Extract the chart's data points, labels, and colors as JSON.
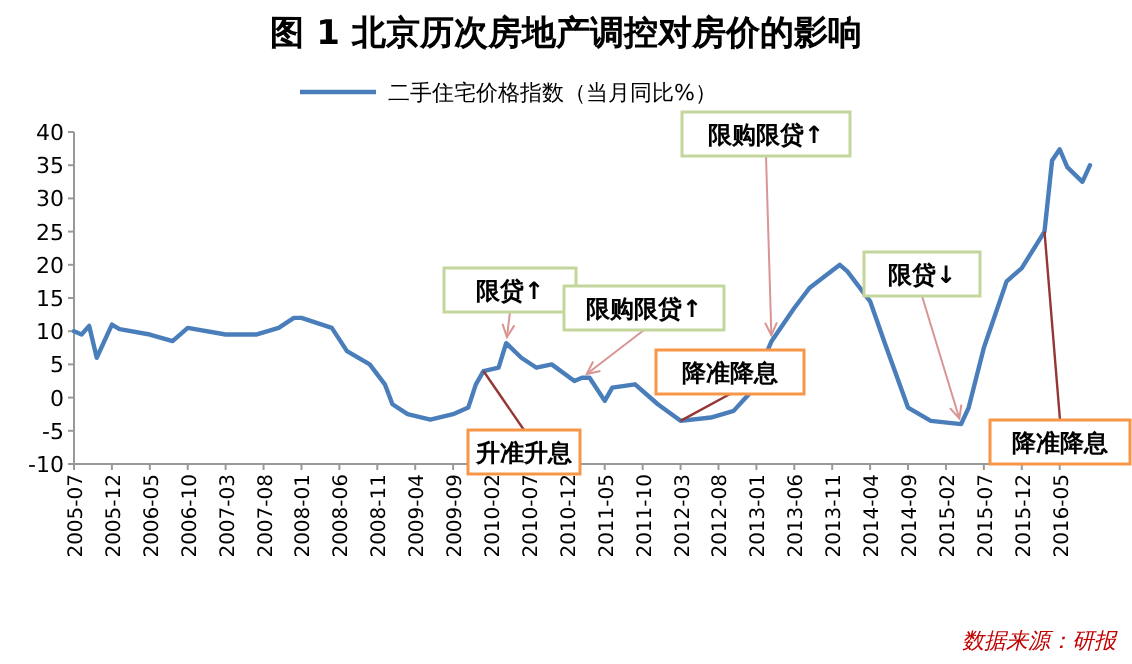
{
  "chart_data": {
    "type": "line",
    "title": "图 1  北京历次房地产调控对房价的影响",
    "series": [
      {
        "name": "二手住宅价格指数（当月同比%）",
        "color": "#4a7ebb",
        "x": [
          "2005-07",
          "2005-08",
          "2005-09",
          "2005-10",
          "2005-12",
          "2006-01",
          "2006-05",
          "2006-08",
          "2006-10",
          "2007-03",
          "2007-07",
          "2007-10",
          "2007-12",
          "2008-01",
          "2008-05",
          "2008-07",
          "2008-10",
          "2008-12",
          "2009-01",
          "2009-03",
          "2009-06",
          "2009-09",
          "2009-11",
          "2009-12",
          "2010-01",
          "2010-03",
          "2010-04",
          "2010-06",
          "2010-08",
          "2010-10",
          "2011-01",
          "2011-02",
          "2011-03",
          "2011-05",
          "2011-06",
          "2011-09",
          "2011-12",
          "2012-03",
          "2012-07",
          "2012-10",
          "2012-12",
          "2013-03",
          "2013-06",
          "2013-08",
          "2013-12",
          "2014-01",
          "2014-04",
          "2014-06",
          "2014-09",
          "2014-12",
          "2015-04",
          "2015-05",
          "2015-07",
          "2015-10",
          "2015-12",
          "2016-03",
          "2016-04",
          "2016-05",
          "2016-06",
          "2016-08",
          "2016-09"
        ],
        "values": [
          10,
          9.5,
          10.8,
          6,
          11,
          10.3,
          9.5,
          8.5,
          10.5,
          9.5,
          9.5,
          10.5,
          12,
          12,
          10.5,
          7,
          5,
          2,
          -1,
          -2.5,
          -3.3,
          -2.5,
          -1.5,
          2,
          4,
          4.5,
          8.2,
          6,
          4.5,
          5,
          2.5,
          3,
          3,
          -0.5,
          1.5,
          2,
          -1,
          -3.5,
          -3,
          -2,
          0.5,
          8.5,
          13.5,
          16.5,
          20,
          19,
          14.5,
          8,
          -1.5,
          -3.5,
          -4,
          -1.5,
          7.5,
          17.5,
          19.5,
          25,
          35.7,
          37.4,
          34.7,
          32.5,
          35
        ]
      }
    ],
    "xlim": [
      "2005-07",
      "2016-09"
    ],
    "xticks": [
      "2005-07",
      "2005-12",
      "2006-05",
      "2006-10",
      "2007-03",
      "2007-08",
      "2008-01",
      "2008-06",
      "2008-11",
      "2009-04",
      "2009-09",
      "2010-02",
      "2010-07",
      "2010-12",
      "2011-05",
      "2011-10",
      "2012-03",
      "2012-08",
      "2013-01",
      "2013-06",
      "2013-11",
      "2014-04",
      "2014-09",
      "2015-02",
      "2015-07",
      "2015-12",
      "2016-05"
    ],
    "ylim": [
      -10,
      40
    ],
    "yticks": [
      -10,
      -5,
      0,
      5,
      10,
      15,
      20,
      25,
      30,
      35,
      40
    ],
    "grid": false,
    "legend": "top",
    "annotations": [
      {
        "text": "限贷↑",
        "x": "2010-04",
        "y": 8.2
      },
      {
        "text": "限购限贷↑",
        "x": "2011-02",
        "y": 3
      },
      {
        "text": "限购限贷↑",
        "x": "2013-03",
        "y": 8.5
      },
      {
        "text": "限贷↓",
        "x": "2015-04",
        "y": -4
      },
      {
        "text": "升准升息",
        "x": "2010-01",
        "y": 4
      },
      {
        "text": "降准降息",
        "x": "2012-03",
        "y": -3.5
      },
      {
        "text": "降准降息",
        "x": "2016-03",
        "y": 25
      },
      "数据来源：研报"
    ]
  }
}
